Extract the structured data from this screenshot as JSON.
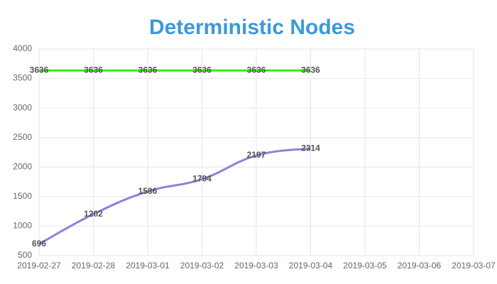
{
  "chart_data": {
    "type": "line",
    "title": "Deterministic Nodes",
    "categories": [
      "2019-02-27",
      "2019-02-28",
      "2019-03-01",
      "2019-03-02",
      "2019-03-03",
      "2019-03-04",
      "2019-03-05",
      "2019-03-06",
      "2019-03-07"
    ],
    "series": [
      {
        "color": "#33ee11",
        "values": [
          3636,
          3636,
          3636,
          3636,
          3636,
          3636,
          null,
          null,
          null
        ]
      },
      {
        "color": "#8f80dd",
        "values": [
          696,
          1202,
          1586,
          1794,
          2197,
          2314,
          null,
          null,
          null
        ]
      }
    ],
    "ylim": [
      500,
      4000
    ],
    "yticks": [
      500,
      1000,
      1500,
      2000,
      2500,
      3000,
      3500,
      4000
    ],
    "grid": true
  }
}
